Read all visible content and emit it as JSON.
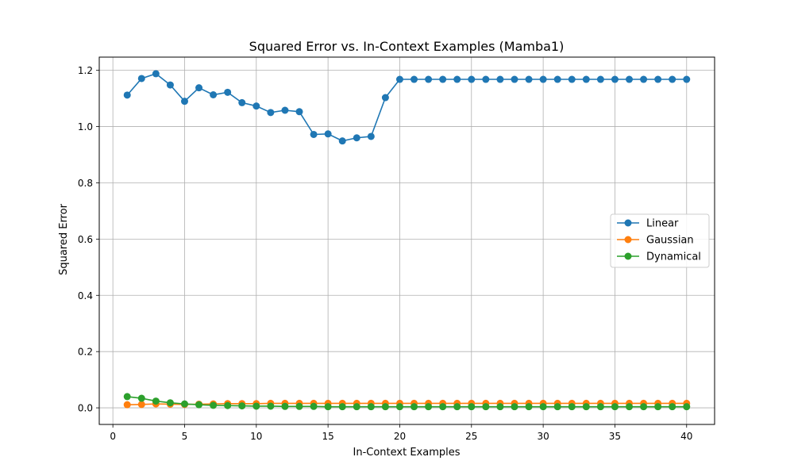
{
  "chart_data": {
    "type": "line",
    "title": "Squared Error vs. In-Context Examples (Mamba1)",
    "xlabel": "In-Context Examples",
    "ylabel": "Squared Error",
    "xlim": [
      -0.95,
      41.95
    ],
    "ylim": [
      -0.059,
      1.247
    ],
    "xticks": [
      0,
      5,
      10,
      15,
      20,
      25,
      30,
      35,
      40
    ],
    "xtick_labels": [
      "0",
      "5",
      "10",
      "15",
      "20",
      "25",
      "30",
      "35",
      "40"
    ],
    "yticks": [
      0.0,
      0.2,
      0.4,
      0.6,
      0.8,
      1.0,
      1.2
    ],
    "ytick_labels": [
      "0.0",
      "0.2",
      "0.4",
      "0.6",
      "0.8",
      "1.0",
      "1.2"
    ],
    "grid": true,
    "legend_position": "center-right",
    "x": [
      1,
      2,
      3,
      4,
      5,
      6,
      7,
      8,
      9,
      10,
      11,
      12,
      13,
      14,
      15,
      16,
      17,
      18,
      19,
      20,
      21,
      22,
      23,
      24,
      25,
      26,
      27,
      28,
      29,
      30,
      31,
      32,
      33,
      34,
      35,
      36,
      37,
      38,
      39,
      40
    ],
    "series": [
      {
        "name": "Linear",
        "color": "#1f77b4",
        "values": [
          1.112,
          1.171,
          1.188,
          1.148,
          1.09,
          1.138,
          1.113,
          1.122,
          1.085,
          1.073,
          1.05,
          1.058,
          1.053,
          0.972,
          0.974,
          0.949,
          0.96,
          0.965,
          1.103,
          1.168,
          1.168,
          1.168,
          1.168,
          1.168,
          1.168,
          1.168,
          1.168,
          1.168,
          1.168,
          1.168,
          1.168,
          1.168,
          1.168,
          1.168,
          1.168,
          1.168,
          1.168,
          1.168,
          1.168,
          1.168
        ]
      },
      {
        "name": "Gaussian",
        "color": "#ff7f0e",
        "values": [
          0.011,
          0.012,
          0.014,
          0.013,
          0.012,
          0.013,
          0.014,
          0.015,
          0.015,
          0.015,
          0.016,
          0.016,
          0.016,
          0.016,
          0.016,
          0.016,
          0.016,
          0.016,
          0.016,
          0.016,
          0.016,
          0.016,
          0.016,
          0.016,
          0.016,
          0.016,
          0.016,
          0.016,
          0.016,
          0.016,
          0.016,
          0.016,
          0.016,
          0.016,
          0.016,
          0.016,
          0.016,
          0.016,
          0.016,
          0.016
        ]
      },
      {
        "name": "Dynamical",
        "color": "#2ca02c",
        "values": [
          0.04,
          0.034,
          0.024,
          0.018,
          0.014,
          0.011,
          0.009,
          0.008,
          0.007,
          0.006,
          0.006,
          0.005,
          0.005,
          0.005,
          0.004,
          0.004,
          0.004,
          0.004,
          0.004,
          0.004,
          0.004,
          0.004,
          0.004,
          0.004,
          0.004,
          0.004,
          0.004,
          0.004,
          0.004,
          0.004,
          0.004,
          0.004,
          0.004,
          0.004,
          0.004,
          0.004,
          0.004,
          0.004,
          0.004,
          0.004
        ]
      }
    ]
  }
}
